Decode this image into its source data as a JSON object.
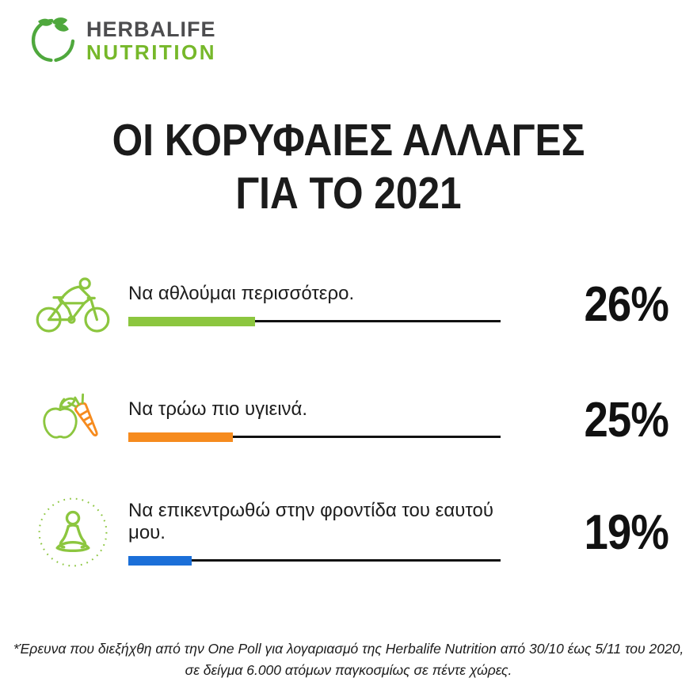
{
  "logo": {
    "brand_line1": "HERBALIFE",
    "brand_line2": "NUTRITION",
    "brand_line1_color": "#4D4D4F",
    "brand_line2_color": "#76B82A",
    "leaf_color": "#4FA83D"
  },
  "title": {
    "line1": "ΟΙ ΚΟΡΥΦΑΙΕΣ ΑΛΛΑΓΕΣ",
    "line2": "ΓΙΑ ΤΟ 2021"
  },
  "chart_data": {
    "type": "bar",
    "orientation": "horizontal",
    "title": "ΟΙ ΚΟΡΥΦΑΙΕΣ ΑΛΛΑΓΕΣ ΓΙΑ ΤΟ 2021",
    "categories": [
      "Να αθλούμαι περισσότερο.",
      "Να τρώω πιο υγιεινά.",
      "Να επικεντρωθώ στην φροντίδα του εαυτού μου."
    ],
    "values": [
      26,
      25,
      19
    ],
    "value_labels": [
      "26%",
      "25%",
      "19%"
    ],
    "bar_colors": [
      "#8CC63F",
      "#F68B1E",
      "#1B6FD8"
    ],
    "icons": [
      "cyclist-icon",
      "apple-carrot-icon",
      "meditation-icon"
    ],
    "track_color": "#111111",
    "track_fill_pct": [
      34,
      28,
      17
    ],
    "xlim": [
      0,
      100
    ],
    "grid": false,
    "legend": false
  },
  "footer": {
    "line1": "*Έρευνα που διεξήχθη από την One Poll για λογαριασμό της Herbalife Nutrition από 30/10 έως 5/11 του 2020,",
    "line2": "σε δείγμα 6.000 ατόμων παγκοσμίως σε πέντε χώρες."
  }
}
